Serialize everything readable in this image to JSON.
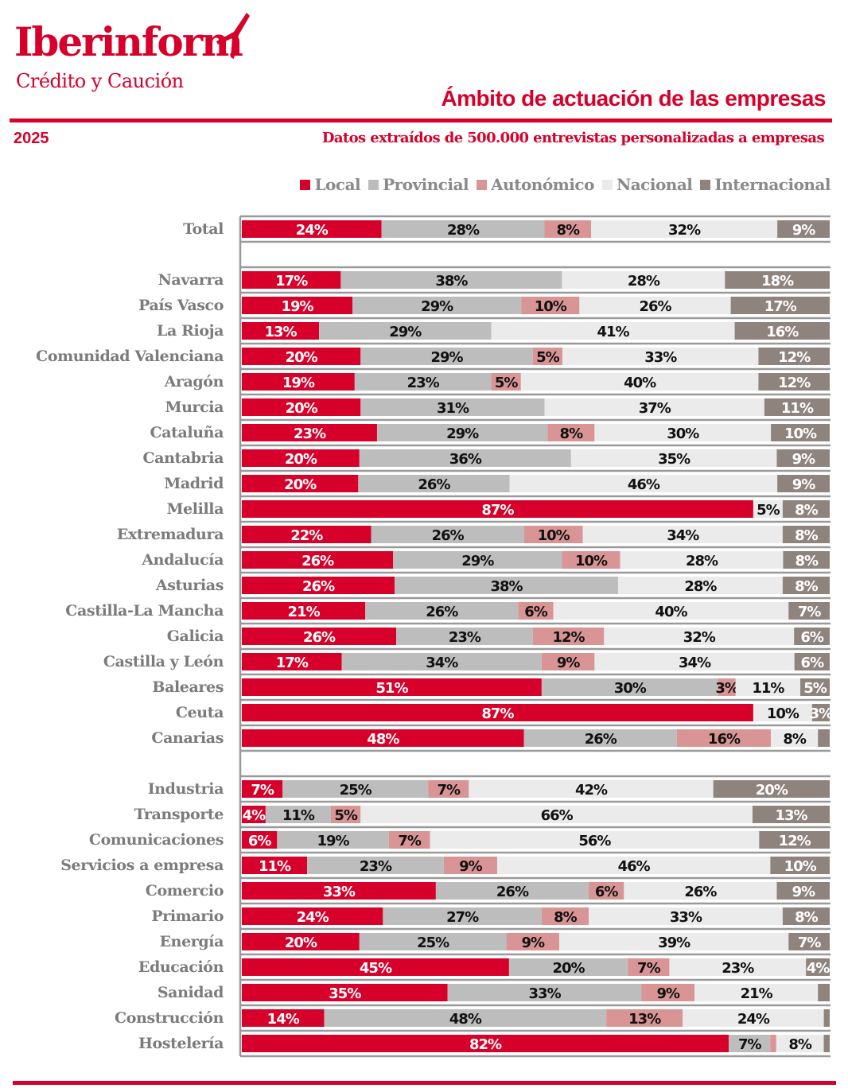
{
  "header": {
    "logo": "Iberinform",
    "logo_sub": "Crédito y Caución",
    "title": "Ámbito de actuación de las empresas",
    "year": "2025",
    "subtitle": "Datos extraídos de 500.000 entrevistas personalizadas a empresas"
  },
  "chart_data": {
    "type": "bar",
    "orientation": "horizontal",
    "stacked": true,
    "unit": "%",
    "legend_position": "top-right",
    "series": [
      {
        "name": "Local",
        "color": "#d7002a",
        "label_color": "#ffffff"
      },
      {
        "name": "Provincial",
        "color": "#bdbdbd",
        "label_color": "#111111"
      },
      {
        "name": "Autonómico",
        "color": "#d99595",
        "label_color": "#111111"
      },
      {
        "name": "Nacional",
        "color": "#ebebeb",
        "label_color": "#111111"
      },
      {
        "name": "Internacional",
        "color": "#8f837d",
        "label_color": "#ffffff"
      }
    ],
    "groups": [
      {
        "rows": [
          {
            "category": "Total",
            "values": [
              24,
              28,
              8,
              32,
              9
            ]
          }
        ]
      },
      {
        "rows": [
          {
            "category": "Navarra",
            "values": [
              17,
              38,
              0,
              28,
              18
            ]
          },
          {
            "category": "País Vasco",
            "values": [
              19,
              29,
              10,
              26,
              17
            ]
          },
          {
            "category": "La Rioja",
            "values": [
              13,
              29,
              0,
              41,
              16
            ]
          },
          {
            "category": "Comunidad Valenciana",
            "values": [
              20,
              29,
              5,
              33,
              12
            ]
          },
          {
            "category": "Aragón",
            "values": [
              19,
              23,
              5,
              40,
              12
            ]
          },
          {
            "category": "Murcia",
            "values": [
              20,
              31,
              0,
              37,
              11
            ]
          },
          {
            "category": "Cataluña",
            "values": [
              23,
              29,
              8,
              30,
              10
            ]
          },
          {
            "category": "Cantabria",
            "values": [
              20,
              36,
              0,
              35,
              9
            ]
          },
          {
            "category": "Madrid",
            "values": [
              20,
              26,
              0,
              46,
              9
            ]
          },
          {
            "category": "Melilla",
            "values": [
              87,
              0,
              0,
              5,
              8
            ]
          },
          {
            "category": "Extremadura",
            "values": [
              22,
              26,
              10,
              34,
              8
            ]
          },
          {
            "category": "Andalucía",
            "values": [
              26,
              29,
              10,
              28,
              8
            ]
          },
          {
            "category": "Asturias",
            "values": [
              26,
              38,
              0,
              28,
              8
            ]
          },
          {
            "category": "Castilla-La Mancha",
            "values": [
              21,
              26,
              6,
              40,
              7
            ]
          },
          {
            "category": "Galicia",
            "values": [
              26,
              23,
              12,
              32,
              6
            ]
          },
          {
            "category": "Castilla y León",
            "values": [
              17,
              34,
              9,
              34,
              6
            ]
          },
          {
            "category": "Baleares",
            "values": [
              51,
              30,
              3,
              11,
              5
            ]
          },
          {
            "category": "Ceuta",
            "values": [
              87,
              0,
              0,
              10,
              3
            ]
          },
          {
            "category": "Canarias",
            "values": [
              48,
              26,
              16,
              8,
              2
            ]
          }
        ]
      },
      {
        "rows": [
          {
            "category": "Industria",
            "values": [
              7,
              25,
              7,
              42,
              20
            ]
          },
          {
            "category": "Transporte",
            "values": [
              4,
              11,
              5,
              66,
              13
            ]
          },
          {
            "category": "Comunicaciones",
            "values": [
              6,
              19,
              7,
              56,
              12
            ]
          },
          {
            "category": "Servicios a empresa",
            "values": [
              11,
              23,
              9,
              46,
              10
            ]
          },
          {
            "category": "Comercio",
            "values": [
              33,
              26,
              6,
              26,
              9
            ]
          },
          {
            "category": "Primario",
            "values": [
              24,
              27,
              8,
              33,
              8
            ]
          },
          {
            "category": "Energía",
            "values": [
              20,
              25,
              9,
              39,
              7
            ]
          },
          {
            "category": "Educación",
            "values": [
              45,
              20,
              7,
              23,
              4
            ]
          },
          {
            "category": "Sanidad",
            "values": [
              35,
              33,
              9,
              21,
              2
            ]
          },
          {
            "category": "Construcción",
            "values": [
              14,
              48,
              13,
              24,
              1
            ]
          },
          {
            "category": "Hostelería",
            "values": [
              82,
              7,
              1,
              8,
              1
            ]
          }
        ]
      }
    ]
  }
}
